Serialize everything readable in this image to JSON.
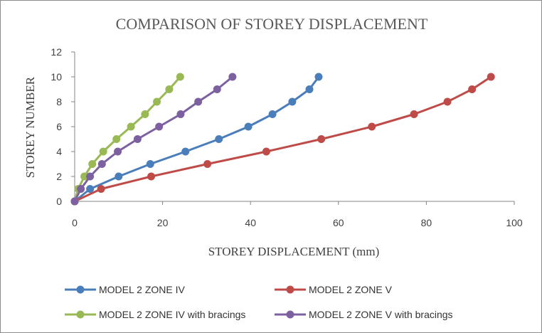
{
  "chart_data": {
    "type": "line",
    "title": "COMPARISON OF STOREY DISPLACEMENT",
    "xlabel": "STOREY DISPLACEMENT (mm)",
    "ylabel": "STOREY NUMBER",
    "xlim": [
      0,
      100
    ],
    "ylim": [
      0,
      12
    ],
    "xticks": [
      "0",
      "20",
      "40",
      "60",
      "80",
      "100"
    ],
    "yticks": [
      "0",
      "2",
      "4",
      "6",
      "8",
      "10",
      "12"
    ],
    "grid": false,
    "legend_position": "bottom",
    "series": [
      {
        "name": "MODEL 2 ZONE  IV",
        "color": "#4a7ebb",
        "points": [
          [
            0,
            0
          ],
          [
            3.5,
            1
          ],
          [
            10,
            2
          ],
          [
            17.2,
            3
          ],
          [
            25.2,
            4
          ],
          [
            32.8,
            5
          ],
          [
            39.5,
            6
          ],
          [
            45,
            7
          ],
          [
            49.5,
            8
          ],
          [
            53.4,
            9
          ],
          [
            55.5,
            10
          ]
        ]
      },
      {
        "name": "MODEL 2 ZONE  V",
        "color": "#be4b48",
        "points": [
          [
            0,
            0
          ],
          [
            6,
            1
          ],
          [
            17.4,
            2
          ],
          [
            30.2,
            3
          ],
          [
            43.6,
            4
          ],
          [
            56.1,
            5
          ],
          [
            67.6,
            6
          ],
          [
            77.2,
            7
          ],
          [
            84.8,
            8
          ],
          [
            90.4,
            9
          ],
          [
            94.7,
            10
          ]
        ]
      },
      {
        "name": "MODEL 2 ZONE  IV with bracings",
        "color": "#98b954",
        "points": [
          [
            0,
            0
          ],
          [
            0.8,
            1
          ],
          [
            2.2,
            2
          ],
          [
            4,
            3
          ],
          [
            6.5,
            4
          ],
          [
            9.5,
            5
          ],
          [
            12.8,
            6
          ],
          [
            16,
            7
          ],
          [
            18.7,
            8
          ],
          [
            21.5,
            9
          ],
          [
            24,
            10
          ]
        ]
      },
      {
        "name": "MODEL 2 ZONE  V with bracings",
        "color": "#7d60a0",
        "points": [
          [
            0,
            0
          ],
          [
            1.4,
            1
          ],
          [
            3.5,
            2
          ],
          [
            6.2,
            3
          ],
          [
            9.8,
            4
          ],
          [
            14.3,
            5
          ],
          [
            19.2,
            6
          ],
          [
            24.1,
            7
          ],
          [
            28.1,
            8
          ],
          [
            32.4,
            9
          ],
          [
            35.9,
            10
          ]
        ]
      }
    ]
  }
}
